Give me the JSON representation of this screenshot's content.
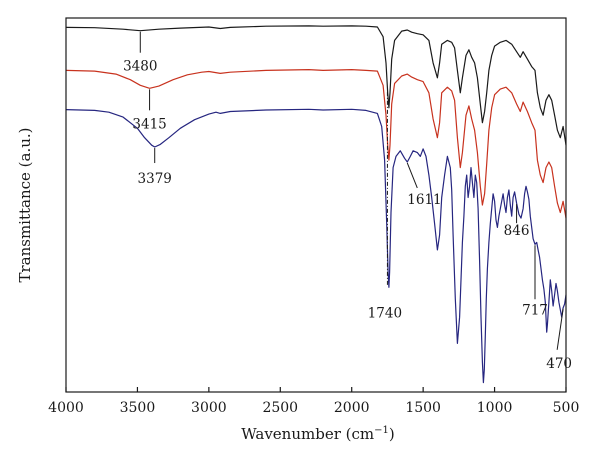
{
  "chart_data": {
    "type": "line",
    "title": "",
    "xlabel": "Wavenumber (cm",
    "xlabel_sup": "−1",
    "xlabel_close": ")",
    "ylabel": "Transmittance (a.u.)",
    "xlim": [
      4000,
      500
    ],
    "x_reversed": true,
    "ylim": [
      0,
      100
    ],
    "y_ticks_shown": false,
    "grid": false,
    "legend": "none",
    "x_ticks": [
      4000,
      3500,
      3000,
      2500,
      2000,
      1500,
      1000,
      500
    ],
    "x_tick_labels": [
      "4000",
      "3500",
      "3000",
      "2500",
      "2000",
      "1500",
      "1000",
      "500"
    ],
    "series": [
      {
        "color": "#1a1a1a",
        "x": [
          4000,
          3800,
          3600,
          3480,
          3350,
          3200,
          3000,
          2920,
          2850,
          2600,
          2300,
          2200,
          2000,
          1900,
          1820,
          1780,
          1760,
          1748,
          1740,
          1732,
          1720,
          1700,
          1650,
          1611,
          1580,
          1540,
          1500,
          1460,
          1430,
          1400,
          1385,
          1370,
          1330,
          1300,
          1280,
          1260,
          1240,
          1225,
          1200,
          1180,
          1160,
          1140,
          1120,
          1100,
          1085,
          1070,
          1055,
          1040,
          1020,
          1000,
          960,
          920,
          880,
          846,
          820,
          800,
          770,
          740,
          717,
          700,
          680,
          660,
          640,
          620,
          600,
          580,
          560,
          540,
          520,
          500
        ],
        "y": [
          97.5,
          97.4,
          97.0,
          96.6,
          97.0,
          97.3,
          97.6,
          97.2,
          97.5,
          97.8,
          97.9,
          97.8,
          97.9,
          97.8,
          97.6,
          95.0,
          88.0,
          80.0,
          76.0,
          80.0,
          89.0,
          94.0,
          96.5,
          96.8,
          96.2,
          95.8,
          95.5,
          94.0,
          88.0,
          84.0,
          88.0,
          93.0,
          94.0,
          93.5,
          92.0,
          86.0,
          80.0,
          84.0,
          90.0,
          91.5,
          89.5,
          88.0,
          84.0,
          77.0,
          72.0,
          75.0,
          80.0,
          86.0,
          90.0,
          92.5,
          93.5,
          94.0,
          93.0,
          91.0,
          89.5,
          91.0,
          89.0,
          87.0,
          86.0,
          80.0,
          76.0,
          74.0,
          78.0,
          79.5,
          78.0,
          74.0,
          70.0,
          68.0,
          71.0,
          66.0
        ]
      },
      {
        "color": "#c8321e",
        "x": [
          4000,
          3800,
          3650,
          3550,
          3480,
          3415,
          3350,
          3250,
          3150,
          3050,
          3000,
          2920,
          2850,
          2600,
          2300,
          2200,
          2000,
          1900,
          1820,
          1780,
          1760,
          1748,
          1740,
          1732,
          1720,
          1700,
          1650,
          1611,
          1580,
          1540,
          1500,
          1460,
          1430,
          1400,
          1385,
          1370,
          1330,
          1300,
          1280,
          1260,
          1240,
          1225,
          1200,
          1180,
          1160,
          1140,
          1120,
          1100,
          1085,
          1070,
          1055,
          1040,
          1020,
          1000,
          960,
          920,
          880,
          846,
          820,
          800,
          770,
          740,
          717,
          700,
          680,
          660,
          640,
          620,
          600,
          580,
          560,
          540,
          520,
          500
        ],
        "y": [
          86.0,
          85.8,
          85.0,
          83.5,
          82.0,
          81.2,
          81.8,
          83.5,
          84.8,
          85.5,
          85.7,
          85.2,
          85.5,
          86.0,
          86.2,
          86.0,
          86.2,
          86.0,
          85.8,
          82.0,
          74.0,
          66.0,
          62.0,
          66.0,
          77.0,
          82.5,
          84.5,
          85.0,
          84.2,
          83.5,
          83.0,
          80.0,
          73.0,
          68.0,
          72.0,
          80.0,
          81.5,
          80.5,
          78.0,
          68.0,
          60.0,
          64.0,
          74.0,
          76.5,
          73.0,
          70.0,
          64.0,
          55.0,
          50.0,
          53.0,
          61.0,
          70.0,
          76.0,
          79.5,
          81.0,
          81.5,
          80.0,
          77.0,
          75.0,
          77.5,
          75.0,
          72.0,
          70.0,
          62.0,
          58.0,
          56.0,
          60.0,
          61.5,
          60.0,
          55.0,
          50.5,
          48.0,
          51.0,
          46.5
        ]
      },
      {
        "color": "#262680",
        "x": [
          4000,
          3800,
          3700,
          3600,
          3500,
          3450,
          3400,
          3379,
          3340,
          3280,
          3200,
          3100,
          3000,
          2950,
          2920,
          2850,
          2600,
          2300,
          2200,
          2000,
          1900,
          1820,
          1790,
          1770,
          1755,
          1745,
          1740,
          1735,
          1725,
          1710,
          1690,
          1660,
          1630,
          1611,
          1590,
          1570,
          1540,
          1520,
          1500,
          1480,
          1460,
          1440,
          1420,
          1400,
          1385,
          1370,
          1350,
          1330,
          1310,
          1300,
          1290,
          1275,
          1260,
          1245,
          1235,
          1225,
          1215,
          1205,
          1195,
          1185,
          1175,
          1165,
          1155,
          1145,
          1135,
          1125,
          1115,
          1105,
          1095,
          1085,
          1078,
          1072,
          1065,
          1058,
          1050,
          1040,
          1030,
          1020,
          1010,
          1000,
          990,
          980,
          970,
          960,
          950,
          940,
          930,
          920,
          910,
          900,
          890,
          880,
          870,
          860,
          846,
          830,
          815,
          800,
          790,
          780,
          770,
          760,
          750,
          740,
          730,
          717,
          705,
          695,
          685,
          675,
          665,
          655,
          645,
          640,
          635,
          630,
          620,
          610,
          600,
          590,
          580,
          570,
          560,
          550,
          540,
          530,
          520,
          510,
          500
        ],
        "y": [
          75.5,
          75.3,
          74.8,
          73.5,
          70.5,
          68.0,
          66.0,
          65.5,
          66.2,
          68.0,
          70.5,
          72.8,
          74.3,
          74.8,
          74.5,
          75.0,
          75.4,
          75.6,
          75.4,
          75.6,
          75.3,
          74.5,
          71.0,
          62.0,
          45.0,
          32.0,
          28.0,
          32.0,
          48.0,
          60.0,
          63.0,
          64.5,
          62.5,
          61.5,
          63.0,
          64.5,
          64.0,
          63.0,
          65.0,
          63.0,
          58.0,
          52.0,
          45.0,
          38.0,
          42.0,
          52.0,
          58.0,
          63.0,
          60.0,
          54.0,
          42.0,
          25.0,
          13.0,
          20.0,
          30.0,
          40.0,
          47.0,
          55.0,
          58.0,
          52.0,
          55.0,
          60.0,
          56.0,
          52.0,
          58.0,
          56.0,
          49.0,
          35.0,
          20.0,
          8.0,
          2.5,
          6.0,
          15.0,
          25.0,
          33.0,
          40.0,
          45.0,
          49.0,
          53.0,
          51.0,
          46.0,
          44.0,
          47.0,
          49.0,
          51.0,
          53.0,
          50.0,
          48.0,
          52.0,
          54.0,
          50.0,
          47.0,
          52.0,
          53.5,
          50.5,
          47.5,
          46.5,
          49.0,
          53.0,
          55.0,
          53.5,
          51.5,
          47.0,
          44.0,
          41.0,
          39.5,
          40.0,
          38.0,
          36.0,
          33.0,
          30.0,
          27.5,
          24.0,
          20.0,
          16.0,
          18.0,
          24.0,
          30.0,
          27.0,
          23.0,
          26.0,
          29.0,
          27.0,
          24.0,
          22.0,
          20.0,
          22.5,
          23.5,
          26.0
        ]
      }
    ],
    "annotations": [
      {
        "text": "3480",
        "x": 3480,
        "series": 0
      },
      {
        "text": "3415",
        "x": 3415,
        "series": 1
      },
      {
        "text": "3379",
        "x": 3379,
        "series": 2
      },
      {
        "text": "1611",
        "x": 1611,
        "series": 2
      },
      {
        "text": "1740",
        "x": 1740,
        "series": 2
      },
      {
        "text": "846",
        "x": 846,
        "series": 2
      },
      {
        "text": "717",
        "x": 717,
        "series": 2
      },
      {
        "text": "470",
        "x": 520,
        "series": 2
      }
    ]
  }
}
